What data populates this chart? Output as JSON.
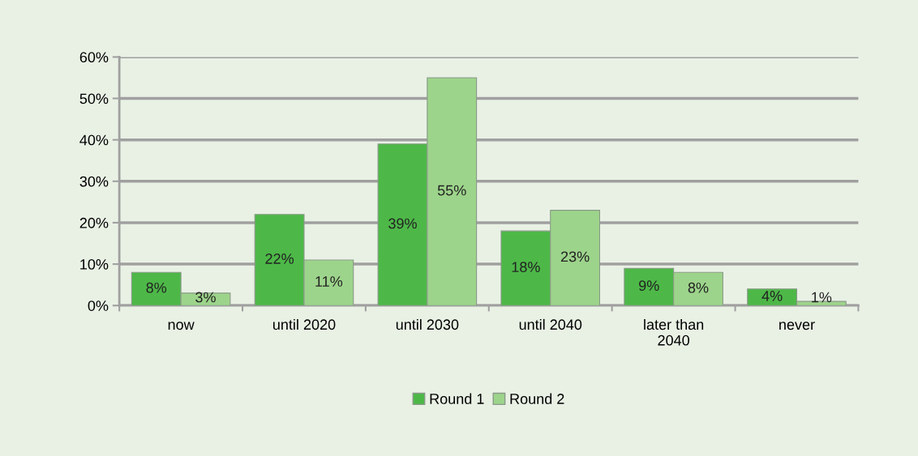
{
  "chart_data": {
    "type": "bar",
    "categories": [
      "now",
      "until 2020",
      "until 2030",
      "until 2040",
      "later than\n2040",
      "never"
    ],
    "series": [
      {
        "name": "Round 1",
        "color": "#4db848",
        "values": [
          8,
          22,
          39,
          18,
          9,
          4
        ],
        "value_labels": [
          "8%",
          "22%",
          "39%",
          "18%",
          "9%",
          "4%"
        ]
      },
      {
        "name": "Round 2",
        "color": "#9dd48b",
        "values": [
          3,
          11,
          55,
          23,
          8,
          1
        ],
        "value_labels": [
          "3%",
          "11%",
          "55%",
          "23%",
          "8%",
          "1%"
        ]
      }
    ],
    "ylim": [
      0,
      60
    ],
    "yticks": [
      {
        "value": 0,
        "label": "0%"
      },
      {
        "value": 10,
        "label": "10%"
      },
      {
        "value": 20,
        "label": "20%"
      },
      {
        "value": 30,
        "label": "30%"
      },
      {
        "value": 40,
        "label": "40%"
      },
      {
        "value": 50,
        "label": "50%"
      },
      {
        "value": 60,
        "label": "60%"
      }
    ],
    "grid": "y",
    "legend": "bottom"
  }
}
